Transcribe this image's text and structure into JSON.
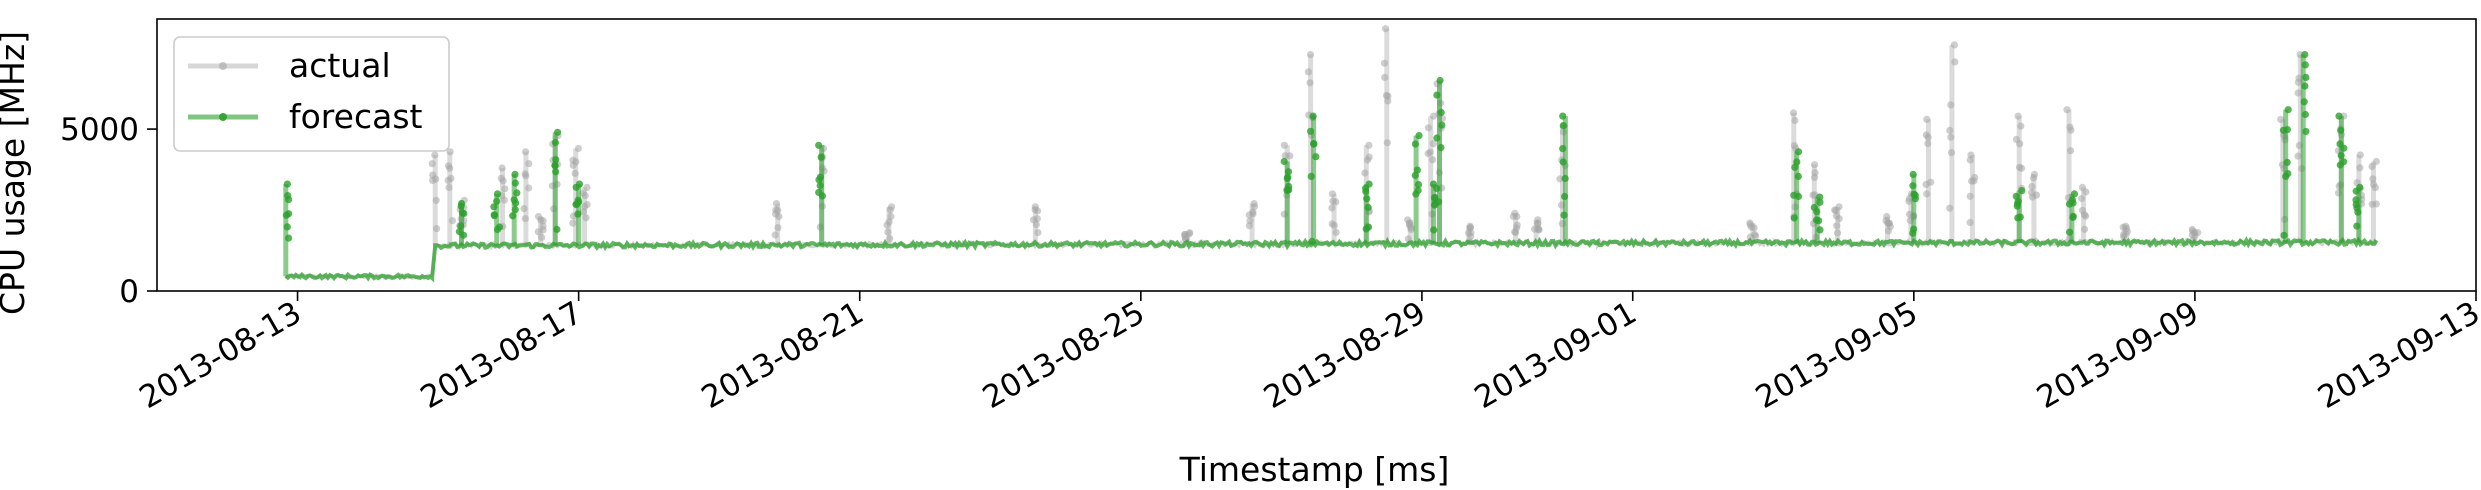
{
  "chart_data": {
    "type": "line",
    "xlabel": "Timestamp [ms]",
    "ylabel": "CPU usage [MHz]",
    "x_range": [
      "2013-08-11T00:00",
      "2013-09-13T00:00"
    ],
    "ylim": [
      0,
      8400
    ],
    "x_ticks": [
      "2013-08-13",
      "2013-08-17",
      "2013-08-21",
      "2013-08-25",
      "2013-08-29",
      "2013-09-01",
      "2013-09-05",
      "2013-09-09",
      "2013-09-13"
    ],
    "y_ticks": [
      0,
      5000
    ],
    "legend": {
      "position": "upper-left",
      "entries": [
        "actual",
        "forecast"
      ]
    },
    "grid": false,
    "series": [
      {
        "name": "actual",
        "color": "#a6a6a6",
        "baseline": [
          [
            "2013-08-12T20:00",
            450
          ],
          [
            "2013-08-14T22:00",
            450
          ],
          [
            "2013-08-14T23:00",
            1400
          ],
          [
            "2013-08-26T00:00",
            1450
          ],
          [
            "2013-08-31T12:00",
            1480
          ],
          [
            "2013-09-11T14:00",
            1500
          ]
        ],
        "spikes": [
          [
            "2013-08-14T23:00",
            4200
          ],
          [
            "2013-08-15T04:00",
            4300
          ],
          [
            "2013-08-15T08:00",
            2800
          ],
          [
            "2013-08-15T22:00",
            3800
          ],
          [
            "2013-08-16T06:00",
            4300
          ],
          [
            "2013-08-16T11:00",
            2300
          ],
          [
            "2013-08-16T16:00",
            4800
          ],
          [
            "2013-08-16T23:00",
            4400
          ],
          [
            "2013-08-17T02:00",
            3200
          ],
          [
            "2013-08-19T20:00",
            2700
          ],
          [
            "2013-08-20T11:00",
            4400
          ],
          [
            "2013-08-21T10:00",
            2600
          ],
          [
            "2013-08-23T12:00",
            2600
          ],
          [
            "2013-08-25T16:00",
            1800
          ],
          [
            "2013-08-26T14:00",
            2700
          ],
          [
            "2013-08-27T02:00",
            4500
          ],
          [
            "2013-08-27T10:00",
            7300
          ],
          [
            "2013-08-27T18:00",
            3000
          ],
          [
            "2013-08-28T05:00",
            4500
          ],
          [
            "2013-08-28T12:00",
            8100
          ],
          [
            "2013-08-28T20:00",
            2200
          ],
          [
            "2013-08-29T03:00",
            5400
          ],
          [
            "2013-08-29T06:00",
            6400
          ],
          [
            "2013-08-29T16:00",
            2000
          ],
          [
            "2013-08-30T08:00",
            2400
          ],
          [
            "2013-08-30T15:00",
            2200
          ],
          [
            "2013-08-31T00:00",
            5100
          ],
          [
            "2013-09-02T17:00",
            2100
          ],
          [
            "2013-09-03T07:00",
            5500
          ],
          [
            "2013-09-03T14:00",
            3900
          ],
          [
            "2013-09-03T22:00",
            2600
          ],
          [
            "2013-09-04T15:00",
            2300
          ],
          [
            "2013-09-04T23:00",
            3000
          ],
          [
            "2013-09-05T05:00",
            5300
          ],
          [
            "2013-09-05T13:00",
            7600
          ],
          [
            "2013-09-05T20:00",
            4200
          ],
          [
            "2013-09-06T12:00",
            5400
          ],
          [
            "2013-09-06T17:00",
            3600
          ],
          [
            "2013-09-07T05:00",
            5600
          ],
          [
            "2013-09-07T10:00",
            3200
          ],
          [
            "2013-09-08T00:00",
            2000
          ],
          [
            "2013-09-09T00:00",
            1900
          ],
          [
            "2013-09-10T06:00",
            5300
          ],
          [
            "2013-09-10T12:00",
            7300
          ],
          [
            "2013-09-11T02:00",
            5400
          ],
          [
            "2013-09-11T08:00",
            4200
          ],
          [
            "2013-09-11T13:00",
            4000
          ]
        ]
      },
      {
        "name": "forecast",
        "color": "#2ca02c",
        "baseline": [
          [
            "2013-08-12T20:00",
            450
          ],
          [
            "2013-08-14T22:00",
            450
          ],
          [
            "2013-08-14T23:00",
            1400
          ],
          [
            "2013-08-26T00:00",
            1450
          ],
          [
            "2013-08-31T12:00",
            1480
          ],
          [
            "2013-09-11T14:00",
            1500
          ]
        ],
        "spikes": [
          [
            "2013-08-12T20:00",
            3300
          ],
          [
            "2013-08-15T08:00",
            2700
          ],
          [
            "2013-08-15T20:00",
            3000
          ],
          [
            "2013-08-16T02:00",
            3600
          ],
          [
            "2013-08-16T16:00",
            4900
          ],
          [
            "2013-08-17T00:00",
            3300
          ],
          [
            "2013-08-20T11:00",
            4500
          ],
          [
            "2013-08-27T02:00",
            4000
          ],
          [
            "2013-08-27T11:00",
            5400
          ],
          [
            "2013-08-28T05:00",
            3300
          ],
          [
            "2013-08-28T22:00",
            4800
          ],
          [
            "2013-08-29T04:00",
            3300
          ],
          [
            "2013-08-29T06:00",
            6500
          ],
          [
            "2013-08-31T01:00",
            5400
          ],
          [
            "2013-09-03T08:00",
            4300
          ],
          [
            "2013-09-03T15:00",
            2900
          ],
          [
            "2013-09-05T00:00",
            3600
          ],
          [
            "2013-09-06T12:00",
            3100
          ],
          [
            "2013-09-07T06:00",
            3000
          ],
          [
            "2013-09-10T07:00",
            5600
          ],
          [
            "2013-09-10T13:00",
            7300
          ],
          [
            "2013-09-11T02:00",
            5400
          ],
          [
            "2013-09-11T08:00",
            3200
          ]
        ]
      }
    ]
  }
}
